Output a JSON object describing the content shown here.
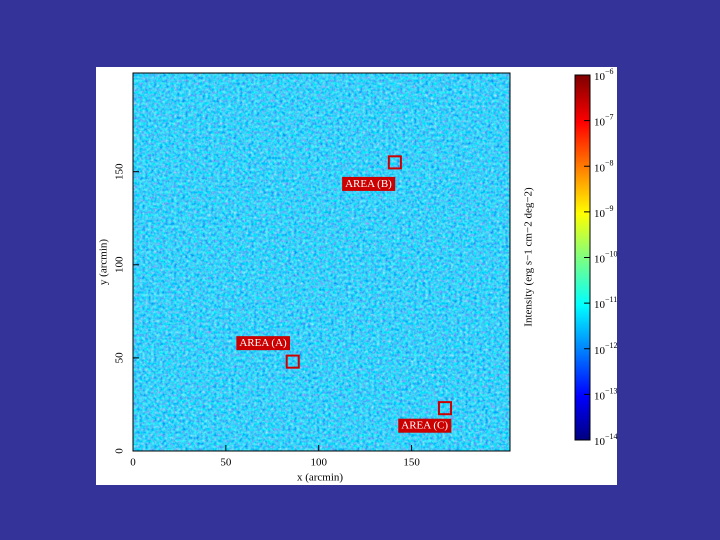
{
  "chart_data": {
    "type": "heatmap",
    "xlabel": "x (arcmin)",
    "ylabel": "y (arcmin)",
    "xlim": [
      0,
      203
    ],
    "ylim": [
      0,
      203
    ],
    "xticks": [
      0,
      50,
      100,
      150
    ],
    "yticks": [
      0,
      50,
      100,
      150
    ],
    "colorbar": {
      "label": "Intensity (erg s−1 cm−2 deg−2)",
      "log": true,
      "lim": [
        1e-14,
        1e-06
      ],
      "ticks": [
        {
          "value": 1e-14,
          "label": "10−14"
        },
        {
          "value": 1e-13,
          "label": "10−13"
        },
        {
          "value": 1e-12,
          "label": "10−12"
        },
        {
          "value": 1e-11,
          "label": "10−11"
        },
        {
          "value": 1e-10,
          "label": "10−10"
        },
        {
          "value": 1e-09,
          "label": "10−9"
        },
        {
          "value": 1e-08,
          "label": "10−8"
        },
        {
          "value": 1e-07,
          "label": "10−7"
        },
        {
          "value": 1e-06,
          "label": "10−6"
        }
      ]
    },
    "annotations": [
      {
        "text": "AREA (A)",
        "x": 86,
        "y": 48,
        "size": 6.5,
        "color": "#cc0000"
      },
      {
        "text": "AREA (B)",
        "x": 141,
        "y": 155,
        "size": 6.5,
        "color": "#cc0000"
      },
      {
        "text": "AREA (C)",
        "x": 168,
        "y": 23,
        "size": 6.5,
        "color": "#cc0000"
      }
    ]
  }
}
